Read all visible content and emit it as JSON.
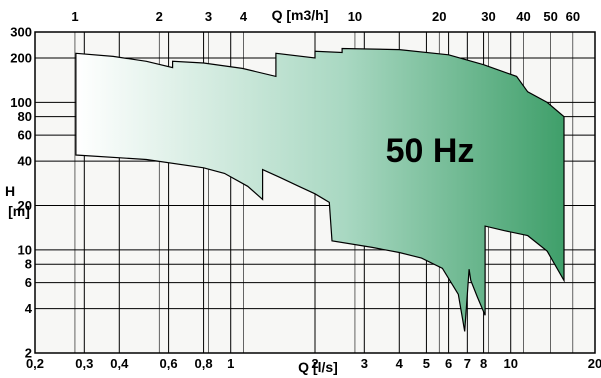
{
  "chart_data": {
    "type": "area",
    "title": "",
    "annotation": "50 Hz",
    "scale": "log-log",
    "grid": true,
    "x_bottom": {
      "label": "Q [l/s]",
      "range": [
        0.2,
        20
      ],
      "ticks": [
        0.2,
        0.3,
        0.4,
        0.6,
        0.8,
        1,
        2,
        3,
        4,
        5,
        6,
        7,
        8,
        10,
        20
      ],
      "tick_labels": [
        "0,2",
        "0,3",
        "0,4",
        "0,6",
        "0,8",
        "1",
        "2",
        "3",
        "4",
        "5",
        "6",
        "7",
        "8",
        "10",
        "20"
      ]
    },
    "x_top": {
      "label": "Q [m3/h]",
      "ticks": [
        1,
        2,
        3,
        4,
        10,
        20,
        30,
        40,
        50,
        60
      ],
      "tick_labels": [
        "1",
        "2",
        "3",
        "4",
        "10",
        "20",
        "30",
        "40",
        "50",
        "60"
      ]
    },
    "y": {
      "label_line1": "H",
      "label_line2": "[m]",
      "range": [
        2,
        300
      ],
      "ticks": [
        2,
        4,
        6,
        8,
        10,
        20,
        40,
        60,
        80,
        100,
        200,
        300
      ],
      "tick_labels": [
        "2",
        "4",
        "6",
        "8",
        "10",
        "20",
        "40",
        "60",
        "80",
        "100",
        "200",
        "300"
      ]
    },
    "envelope_upper": [
      {
        "q": 0.28,
        "h": 215
      },
      {
        "q": 0.38,
        "h": 205
      },
      {
        "q": 0.5,
        "h": 190
      },
      {
        "q": 0.62,
        "h": 172
      },
      {
        "q": 0.62,
        "h": 190
      },
      {
        "q": 0.8,
        "h": 185
      },
      {
        "q": 1.1,
        "h": 170
      },
      {
        "q": 1.45,
        "h": 150
      },
      {
        "q": 1.45,
        "h": 215
      },
      {
        "q": 2.0,
        "h": 200
      },
      {
        "q": 2.0,
        "h": 222
      },
      {
        "q": 2.5,
        "h": 218
      },
      {
        "q": 2.5,
        "h": 232
      },
      {
        "q": 4.0,
        "h": 228
      },
      {
        "q": 6.0,
        "h": 210
      },
      {
        "q": 8.0,
        "h": 180
      },
      {
        "q": 10.5,
        "h": 150
      },
      {
        "q": 11.5,
        "h": 118
      },
      {
        "q": 13.5,
        "h": 100
      },
      {
        "q": 15.5,
        "h": 80
      }
    ],
    "envelope_lower": [
      {
        "q": 15.5,
        "h": 6.2
      },
      {
        "q": 13.5,
        "h": 9.8
      },
      {
        "q": 11.5,
        "h": 12.5
      },
      {
        "q": 9.5,
        "h": 13.5
      },
      {
        "q": 8.1,
        "h": 14.5
      },
      {
        "q": 8.1,
        "h": 3.6
      },
      {
        "q": 7.6,
        "h": 4.8
      },
      {
        "q": 7.2,
        "h": 6.2
      },
      {
        "q": 7.1,
        "h": 7.4
      },
      {
        "q": 6.85,
        "h": 2.8
      },
      {
        "q": 6.5,
        "h": 5.0
      },
      {
        "q": 5.7,
        "h": 7.5
      },
      {
        "q": 4.8,
        "h": 8.8
      },
      {
        "q": 4.0,
        "h": 9.6
      },
      {
        "q": 3.2,
        "h": 10.4
      },
      {
        "q": 2.3,
        "h": 11.5
      },
      {
        "q": 2.25,
        "h": 21
      },
      {
        "q": 2.0,
        "h": 24
      },
      {
        "q": 1.75,
        "h": 27
      },
      {
        "q": 1.5,
        "h": 31
      },
      {
        "q": 1.3,
        "h": 35
      },
      {
        "q": 1.3,
        "h": 22
      },
      {
        "q": 1.15,
        "h": 27
      },
      {
        "q": 0.95,
        "h": 33
      },
      {
        "q": 0.8,
        "h": 36
      },
      {
        "q": 0.5,
        "h": 41
      },
      {
        "q": 0.28,
        "h": 44
      }
    ],
    "fill_colors": [
      "#ffffff",
      "#a9d8c2",
      "#3f9f6a"
    ],
    "grid_color": "#000000"
  }
}
